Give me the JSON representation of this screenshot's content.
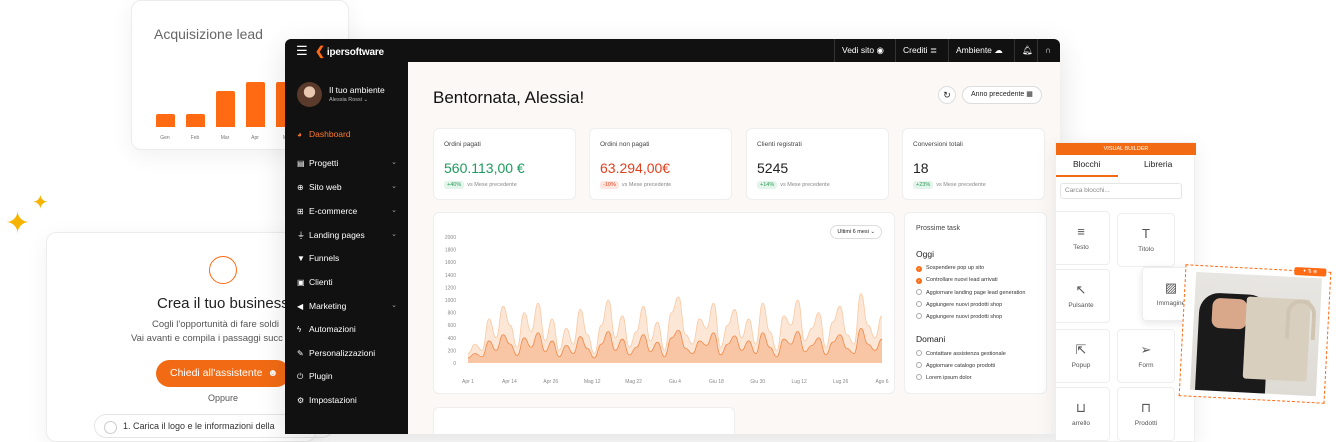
{
  "lead_card": {
    "title": "Acquisizione lead",
    "months": [
      "Gen",
      "Feb",
      "Mar",
      "Apr",
      "M"
    ]
  },
  "business_card": {
    "title": "Crea il tuo business",
    "line1": "Cogli l'opportunità di fare soldi",
    "line2": "Vai avanti e compila i passaggi succ",
    "cta": "Chiedi all'assistente",
    "or": "Oppure",
    "step1": "1. Carica il logo e le informazioni della"
  },
  "topbar": {
    "logo": "ipersoftware",
    "view_site": "Vedi sito",
    "credits": "Crediti",
    "environment": "Ambiente"
  },
  "sidebar": {
    "env_title": "Il tuo ambiente",
    "user_name": "Alessia Rossi",
    "items": [
      {
        "label": "Dashboard",
        "icon": "dashboard-icon",
        "active": true
      },
      {
        "label": "Progetti",
        "icon": "projects-icon"
      },
      {
        "label": "Sito web",
        "icon": "globe-icon"
      },
      {
        "label": "E-commerce",
        "icon": "cart-icon"
      },
      {
        "label": "Landing pages",
        "icon": "landing-icon"
      },
      {
        "label": "Funnels",
        "icon": "funnel-icon"
      },
      {
        "label": "Clienti",
        "icon": "clients-icon"
      },
      {
        "label": "Marketing",
        "icon": "megaphone-icon"
      },
      {
        "label": "Automazioni",
        "icon": "bolt-icon"
      },
      {
        "label": "Personalizzazioni",
        "icon": "brush-icon"
      },
      {
        "label": "Plugin",
        "icon": "plug-icon"
      },
      {
        "label": "Impostazioni",
        "icon": "gear-icon"
      }
    ]
  },
  "main": {
    "greeting": "Bentornata, Alessia!",
    "period_button": "Anno precedente",
    "kpis": [
      {
        "label": "Ordini pagati",
        "value": "560.113,00 €",
        "delta": "+40%",
        "note": "vs Mese precedente",
        "color": "#1e9b5e",
        "trend": "up"
      },
      {
        "label": "Ordini non pagati",
        "value": "63.294,00€",
        "delta": "-10%",
        "note": "vs Mese precedente",
        "color": "#e0411e",
        "trend": "down"
      },
      {
        "label": "Clienti registrati",
        "value": "5245",
        "delta": "+14%",
        "note": "vs Mese precedente",
        "color": "#222222",
        "trend": "up"
      },
      {
        "label": "Conversioni totali",
        "value": "18",
        "delta": "+23%",
        "note": "vs Mese precedente",
        "color": "#222222",
        "trend": "up"
      }
    ],
    "chart_filter": "Ultimi 6 mesi"
  },
  "chart_data": {
    "type": "area",
    "x_labels": [
      "Apr 1",
      "Apr 14",
      "Apr 26",
      "Mag 12",
      "Mag 22",
      "Giu 4",
      "Giu 18",
      "Giu 30",
      "Lug 12",
      "Lug 26",
      "Ago 6"
    ],
    "y_ticks": [
      0,
      200,
      400,
      600,
      800,
      1000,
      1200,
      1400,
      1600,
      1800,
      2000
    ],
    "ylim": [
      0,
      2000
    ],
    "series": [
      {
        "values": [
          150,
          300,
          200,
          700,
          400,
          900,
          600,
          250,
          800,
          500,
          950,
          350,
          700,
          200,
          550,
          300,
          850,
          450,
          150,
          600,
          1000,
          400,
          750,
          250,
          500,
          900,
          350,
          650,
          200,
          800,
          1050,
          450,
          300,
          700,
          550,
          950,
          250,
          600,
          850,
          400,
          700,
          300,
          950,
          500,
          200,
          750,
          600,
          1000,
          350,
          550,
          800,
          250,
          650,
          900,
          450,
          300,
          1100,
          600,
          400,
          750
        ]
      },
      {
        "values": [
          80,
          150,
          100,
          350,
          200,
          450,
          300,
          120,
          400,
          250,
          480,
          180,
          350,
          100,
          280,
          150,
          420,
          230,
          80,
          300,
          500,
          200,
          380,
          130,
          250,
          450,
          180,
          330,
          100,
          400,
          520,
          230,
          150,
          350,
          280,
          480,
          130,
          300,
          430,
          200,
          350,
          150,
          480,
          250,
          100,
          380,
          300,
          500,
          180,
          280,
          400,
          130,
          330,
          450,
          230,
          150,
          550,
          300,
          200,
          380
        ]
      }
    ],
    "colors": [
      "#f9c9a5",
      "#f28a4a"
    ],
    "grid": false
  },
  "tasks": {
    "title": "Prossime task",
    "today_label": "Oggi",
    "today": [
      {
        "text": "Sospendere pop up sito",
        "done": true
      },
      {
        "text": "Controllare nuovi lead arrivati",
        "done": true
      },
      {
        "text": "Aggiornare landing page lead generation",
        "done": false
      },
      {
        "text": "Aggiungere nuovi prodotti shop",
        "done": false
      },
      {
        "text": "Aggiungere nuovi prodotti shop",
        "done": false
      }
    ],
    "tomorrow_label": "Domani",
    "tomorrow": [
      {
        "text": "Contattare assistenza gestionale",
        "done": false
      },
      {
        "text": "Aggiornare catalogo prodotti",
        "done": false
      },
      {
        "text": "Lorem ipsum dolor",
        "done": false
      }
    ]
  },
  "visual_builder": {
    "header": "VISUAL BUILDER",
    "tab_blocks": "Blocchi",
    "tab_library": "Libreria",
    "search_placeholder": "Carca blocchi...",
    "blocks": [
      {
        "label": "Testo",
        "icon": "text-lines-icon",
        "glyph": "≡"
      },
      {
        "label": "Titolo",
        "icon": "title-icon",
        "glyph": "T"
      },
      {
        "label": "Pulsante",
        "icon": "cursor-icon",
        "glyph": "↖"
      },
      {
        "label": "Immagine",
        "icon": "image-icon",
        "glyph": "▨"
      },
      {
        "label": "Popup",
        "icon": "popup-icon",
        "glyph": "⇱"
      },
      {
        "label": "Form",
        "icon": "send-icon",
        "glyph": "➢"
      },
      {
        "label": "arrello",
        "icon": "cart-icon",
        "glyph": "⊔"
      },
      {
        "label": "Prodotti",
        "icon": "bag-icon",
        "glyph": "⊓"
      }
    ]
  }
}
